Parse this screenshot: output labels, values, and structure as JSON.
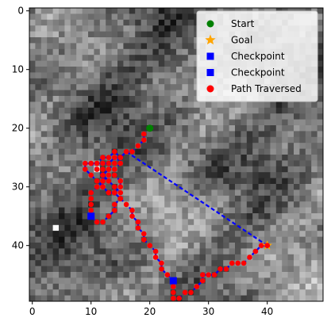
{
  "chart_data": {
    "type": "scatter",
    "title": "",
    "xlabel": "",
    "ylabel": "",
    "xlim": [
      -0.5,
      49.5
    ],
    "ylim": [
      49.5,
      -0.5
    ],
    "y_inverted": true,
    "x_ticks": [
      0,
      10,
      20,
      30,
      40
    ],
    "y_ticks": [
      0,
      10,
      20,
      30,
      40
    ],
    "grid": false,
    "background": "grayscale terrain heatmap 50x50",
    "legend_position": "top-right",
    "legend": [
      {
        "label": "Start",
        "marker": "circle",
        "color": "#008000"
      },
      {
        "label": "Goal",
        "marker": "star",
        "color": "#FFA500"
      },
      {
        "label": "Checkpoint",
        "marker": "square",
        "color": "#0000FF"
      },
      {
        "label": "Checkpoint",
        "marker": "square",
        "color": "#0000FF"
      },
      {
        "label": "Path Traversed",
        "marker": "circle",
        "color": "#FF0000"
      }
    ],
    "start": {
      "x": 20,
      "y": 20
    },
    "goal": {
      "x": 40,
      "y": 40
    },
    "checkpoints": [
      {
        "x": 24,
        "y": 46
      },
      {
        "x": 10,
        "y": 35
      }
    ],
    "path_line_color": "#0000FF",
    "path": [
      [
        19,
        21
      ],
      [
        19,
        22
      ],
      [
        18,
        23
      ],
      [
        17,
        24
      ],
      [
        16,
        24
      ],
      [
        15,
        25
      ],
      [
        14,
        25
      ],
      [
        13,
        26
      ],
      [
        12,
        26
      ],
      [
        11,
        26
      ],
      [
        10,
        26
      ],
      [
        9,
        26
      ],
      [
        9,
        27
      ],
      [
        10,
        28
      ],
      [
        11,
        29
      ],
      [
        12,
        30
      ],
      [
        13,
        31
      ],
      [
        14,
        31
      ],
      [
        15,
        30
      ],
      [
        15,
        29
      ],
      [
        14,
        28
      ],
      [
        13,
        28
      ],
      [
        12,
        29
      ],
      [
        12,
        30
      ],
      [
        13,
        31
      ],
      [
        14,
        31
      ],
      [
        15,
        32
      ],
      [
        16,
        33
      ],
      [
        17,
        34
      ],
      [
        17,
        35
      ],
      [
        18,
        36
      ],
      [
        18,
        37
      ],
      [
        19,
        38
      ],
      [
        19,
        39
      ],
      [
        20,
        40
      ],
      [
        21,
        41
      ],
      [
        21,
        42
      ],
      [
        22,
        43
      ],
      [
        22,
        44
      ],
      [
        23,
        45
      ],
      [
        24,
        46
      ],
      [
        24,
        47
      ],
      [
        24,
        48
      ],
      [
        24,
        49
      ],
      [
        25,
        49
      ],
      [
        26,
        48
      ],
      [
        27,
        48
      ],
      [
        28,
        47
      ],
      [
        29,
        46
      ],
      [
        29,
        45
      ],
      [
        30,
        45
      ],
      [
        31,
        45
      ],
      [
        32,
        44
      ],
      [
        33,
        44
      ],
      [
        34,
        43
      ],
      [
        35,
        43
      ],
      [
        36,
        43
      ],
      [
        37,
        42
      ],
      [
        38,
        41
      ],
      [
        39,
        40
      ],
      [
        40,
        40
      ],
      [
        16,
        24
      ],
      [
        15,
        25
      ],
      [
        14,
        26
      ],
      [
        13,
        27
      ],
      [
        12,
        28
      ],
      [
        12,
        29
      ],
      [
        11,
        30
      ],
      [
        10,
        31
      ],
      [
        10,
        32
      ],
      [
        10,
        33
      ],
      [
        10,
        34
      ],
      [
        10,
        35
      ],
      [
        11,
        36
      ],
      [
        12,
        36
      ],
      [
        13,
        35
      ],
      [
        14,
        34
      ],
      [
        14,
        33
      ],
      [
        15,
        32
      ],
      [
        15,
        31
      ],
      [
        14,
        30
      ],
      [
        13,
        29
      ],
      [
        12,
        28
      ],
      [
        11,
        27
      ],
      [
        11,
        26
      ],
      [
        12,
        25
      ],
      [
        13,
        25
      ],
      [
        14,
        24
      ],
      [
        15,
        25
      ],
      [
        15,
        26
      ],
      [
        14,
        27
      ],
      [
        13,
        27
      ],
      [
        12,
        27
      ],
      [
        11,
        27
      ],
      [
        10,
        26
      ]
    ]
  }
}
